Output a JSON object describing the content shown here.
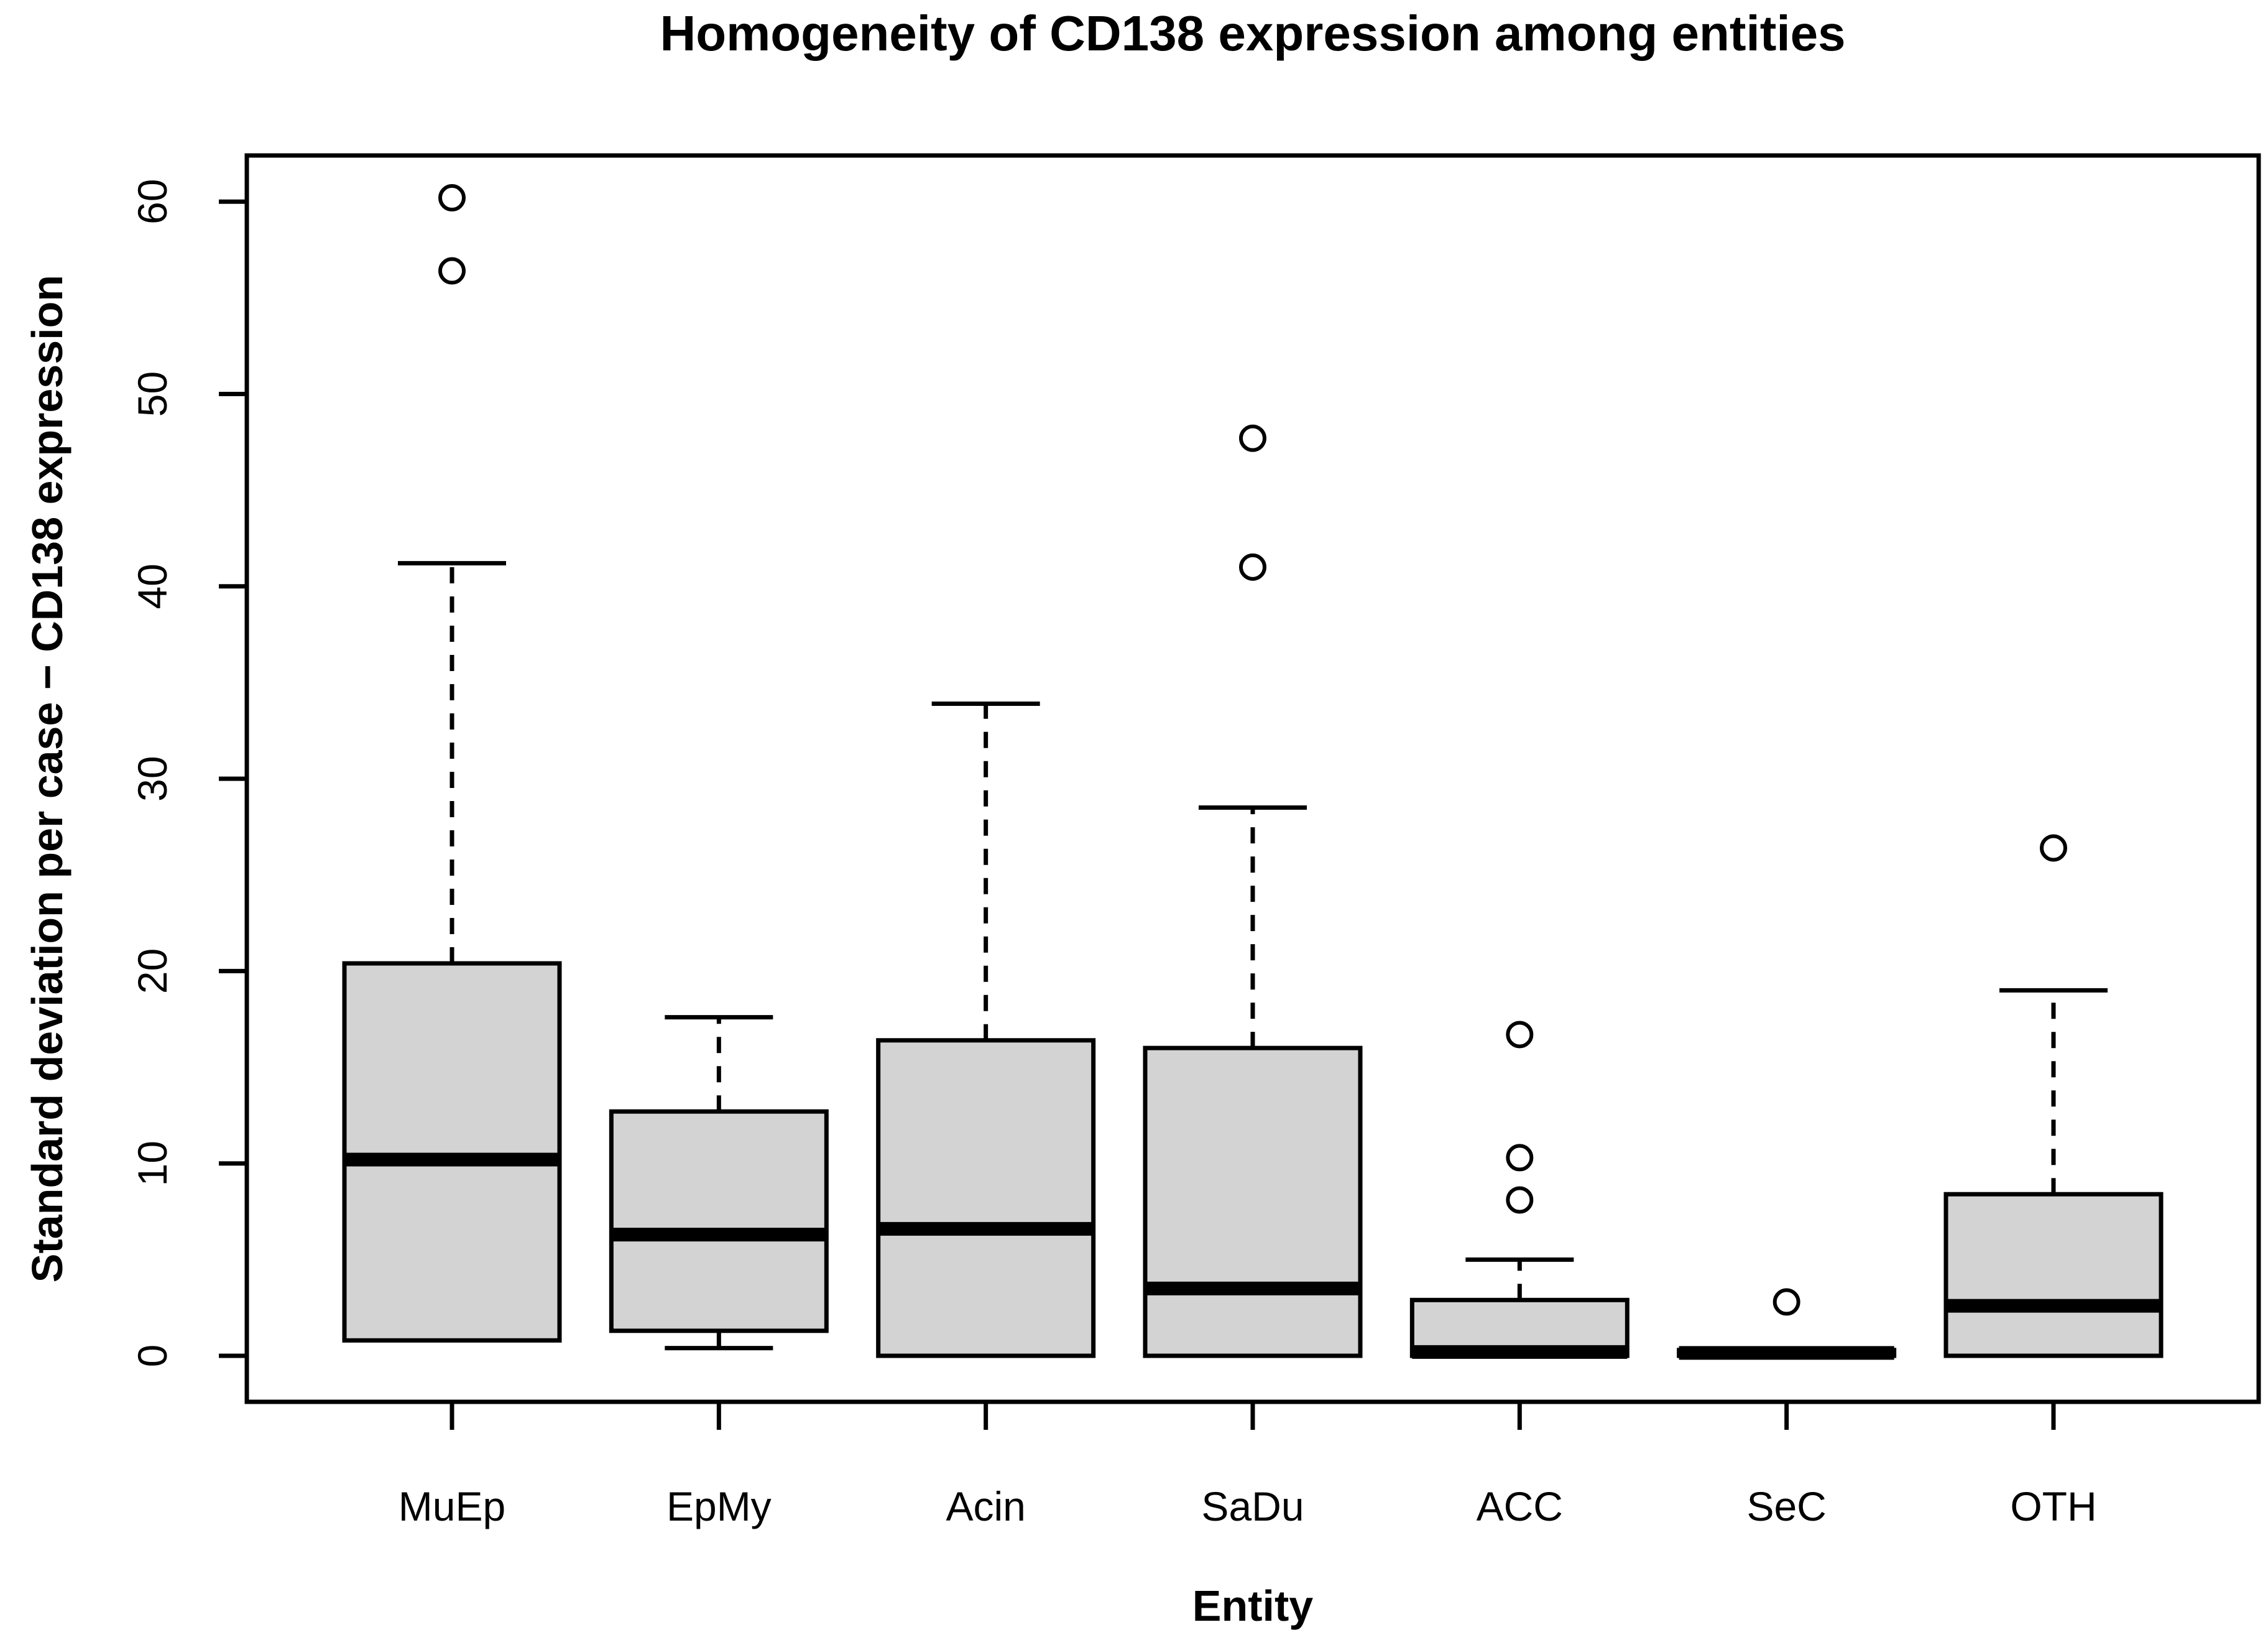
{
  "title": "Homogeneity of CD138 expression among entities",
  "chart_data": {
    "type": "boxplot",
    "title": "Homogeneity of CD138 expression among entities",
    "xlabel": "Entity",
    "ylabel": "Standard deviation per case − CD138 expression",
    "categories": [
      "MuEp",
      "EpMy",
      "Acin",
      "SaDu",
      "ACC",
      "SeC",
      "OTH"
    ],
    "y_ticks": [
      0,
      10,
      20,
      30,
      40,
      50,
      60
    ],
    "ylim": [
      0,
      62
    ],
    "grid": false,
    "legend": "none",
    "colors": {
      "box_fill": "#d3d3d3",
      "stroke": "#000000",
      "background": "#ffffff"
    },
    "series": [
      {
        "name": "MuEp",
        "whisker_low": 0.8,
        "q1": 0.8,
        "median": 10.2,
        "q3": 20.4,
        "whisker_high": 41.2,
        "outliers": [
          56.4,
          60.2
        ]
      },
      {
        "name": "EpMy",
        "whisker_low": 0.4,
        "q1": 1.3,
        "median": 6.3,
        "q3": 12.7,
        "whisker_high": 17.6,
        "outliers": []
      },
      {
        "name": "Acin",
        "whisker_low": 0,
        "q1": 0,
        "median": 6.6,
        "q3": 16.4,
        "whisker_high": 33.9,
        "outliers": []
      },
      {
        "name": "SaDu",
        "whisker_low": 0,
        "q1": 0,
        "median": 3.5,
        "q3": 16.0,
        "whisker_high": 28.5,
        "outliers": [
          41.0,
          47.7
        ]
      },
      {
        "name": "ACC",
        "whisker_low": 0,
        "q1": 0,
        "median": 0.2,
        "q3": 2.9,
        "whisker_high": 5.0,
        "outliers": [
          8.1,
          10.3,
          16.7
        ]
      },
      {
        "name": "SeC",
        "whisker_low": 0,
        "q1": 0,
        "median": 0.15,
        "q3": 0.3,
        "whisker_high": 0.3,
        "outliers": [
          2.8
        ]
      },
      {
        "name": "OTH",
        "whisker_low": 0,
        "q1": 0,
        "median": 2.6,
        "q3": 8.4,
        "whisker_high": 19.0,
        "outliers": [
          26.4
        ]
      }
    ]
  }
}
